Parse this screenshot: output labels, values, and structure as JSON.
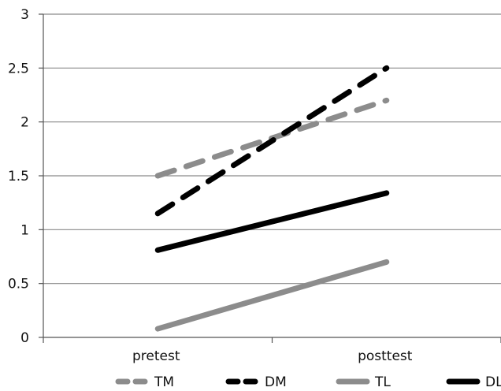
{
  "chart_data": {
    "type": "line",
    "categories": [
      "pretest",
      "posttest"
    ],
    "ylim": [
      0,
      3
    ],
    "yticks": [
      "0",
      "0.5",
      "1",
      "1.5",
      "2",
      "2.5",
      "3"
    ],
    "grid": true,
    "legend_position": "bottom",
    "series": [
      {
        "name": "TM",
        "values": [
          1.5,
          2.2
        ],
        "color": "#8c8c8c",
        "dashed": true
      },
      {
        "name": "DM",
        "values": [
          1.15,
          2.5
        ],
        "color": "#000000",
        "dashed": true
      },
      {
        "name": "TL",
        "values": [
          0.08,
          0.7
        ],
        "color": "#8c8c8c",
        "dashed": false
      },
      {
        "name": "DL",
        "values": [
          0.81,
          1.34
        ],
        "color": "#000000",
        "dashed": false
      }
    ]
  }
}
